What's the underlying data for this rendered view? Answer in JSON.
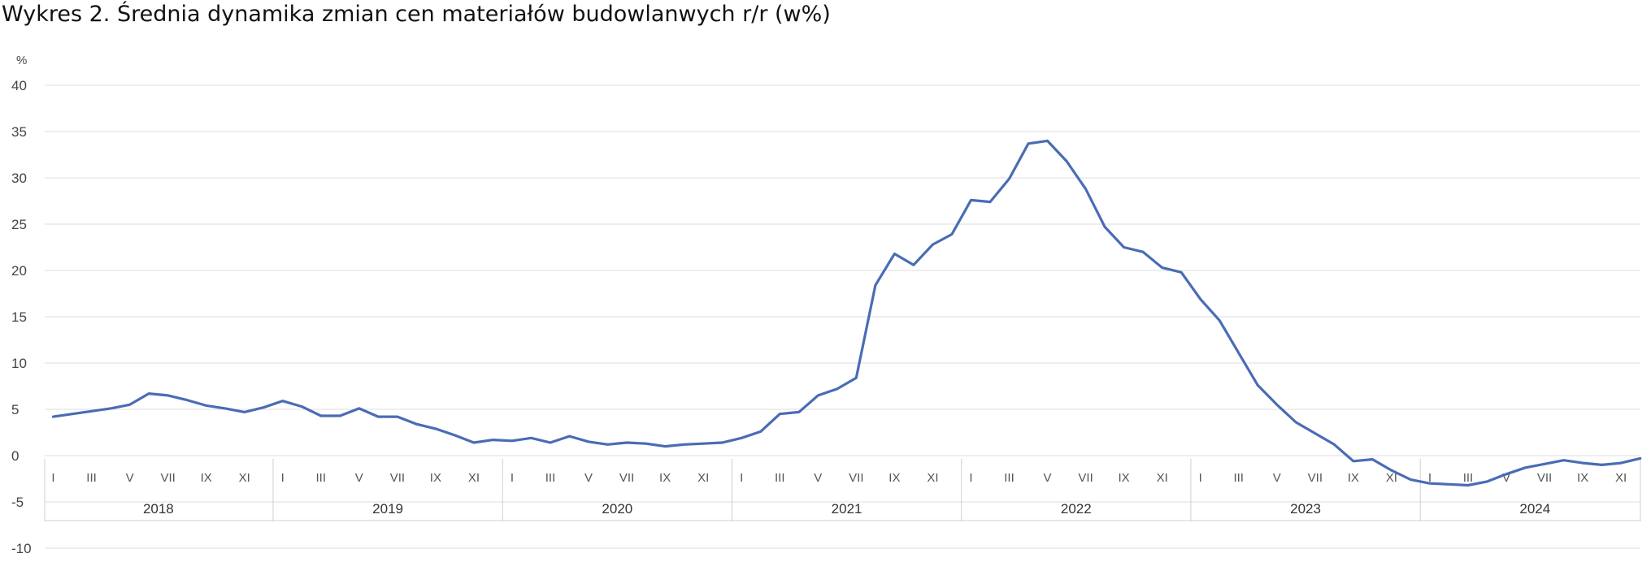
{
  "chart_data": {
    "type": "line",
    "title": "Wykres 2. Średnia dynamika zmian cen materiałów budowlanwych r/r (w%)",
    "ylabel": "%",
    "xlabel": "",
    "ylim": [
      -10,
      40
    ],
    "yticks": [
      40,
      35,
      30,
      25,
      20,
      15,
      10,
      5,
      0,
      -5,
      -10
    ],
    "grid": true,
    "legend": "none",
    "color": "#4a6cb5",
    "month_tick_labels": [
      "I",
      "III",
      "V",
      "VII",
      "IX",
      "XI"
    ],
    "years": [
      "2018",
      "2019",
      "2020",
      "2021",
      "2022",
      "2023",
      "2024"
    ],
    "series": [
      {
        "values": [
          4.2,
          4.5,
          4.8,
          5.1,
          5.5,
          6.7,
          6.5,
          6.0,
          5.4,
          5.1,
          4.7,
          5.2,
          5.9,
          5.3,
          4.3,
          4.3,
          5.1,
          4.2,
          4.2,
          3.4,
          2.9,
          2.2,
          1.4,
          1.7,
          1.6,
          1.9,
          1.4,
          2.1,
          1.5,
          1.2,
          1.4,
          1.3,
          1.0,
          1.2,
          1.3,
          1.4,
          1.9,
          2.6,
          4.5,
          4.7,
          6.5,
          7.2,
          8.4,
          18.4,
          21.8,
          20.6,
          22.8,
          23.9,
          27.6,
          27.4,
          29.9,
          33.7,
          34.0,
          31.8,
          28.8,
          24.7,
          22.5,
          22.0,
          20.3,
          19.8,
          16.9,
          14.6,
          11.1,
          7.6,
          5.5,
          3.6,
          2.4,
          1.2,
          -0.6,
          -0.4,
          -1.6,
          -2.6,
          -3.0,
          -3.1,
          -3.2,
          -2.8,
          -2.0,
          -1.3,
          -0.9,
          -0.5,
          -0.8,
          -1.0,
          -0.8,
          -0.3
        ]
      }
    ]
  }
}
